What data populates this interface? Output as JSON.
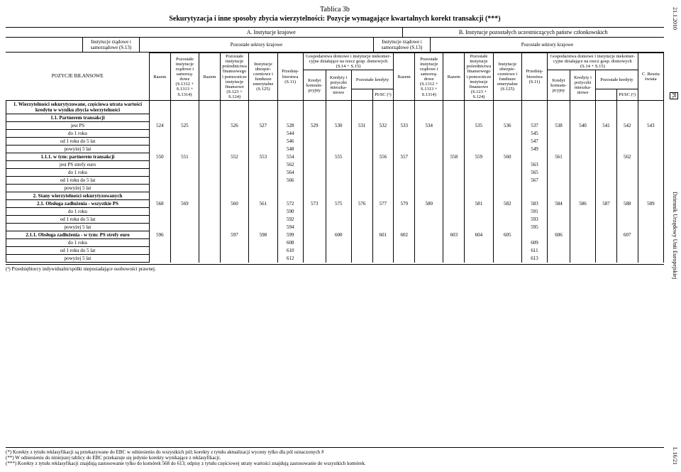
{
  "margin": {
    "date": "21.1.2010",
    "pl": "PL",
    "journal": "Dziennik Urzędowy Unii Europejskiej",
    "pgnum": "L 16/21"
  },
  "title": {
    "line1": "Tablica 3b",
    "line2": "Sekurytyzacja i inne sposoby zbycia wierzytelności: Pozycje wymagające kwartalnych korekt transakcji (***)"
  },
  "sections": {
    "a": "A. Instytucje krajowe",
    "b": "B. Instytucje pozostałych uczestniczących państw członkowskich"
  },
  "inst_row": {
    "a1": "Instytucje rządowe i samorządowe (S.13)",
    "a2": "Pozostałe sektory krajowe",
    "b1": "Instytucje rządowe i samorządowe (S.13)",
    "b2": "Pozostałe sektory krajowe"
  },
  "headers": {
    "pozycje": "POZYCJE BILANSOWE",
    "razem": "Razem",
    "poz_inst": "Pozostałe instytucje rządowe i samorzą­dowe (S.1312 + S.1313 + S.1314)",
    "posred": "Pozostałe instytucje pośred­nictwa finanso­wego i pomocn­icze instytucje finansowe (S.123 + S.124)",
    "ubezp": "Instytucje ubezpie­czeniowe i fundusze emery­talne (S.125)",
    "przed": "Przedsię­biorstwa (S.11)",
    "gosp_head": "Gospodarstwa domowe i instytucje niekomer­cyjne działające na rzecz gosp. domowych (S.14 + S.15)",
    "kredyt_kon": "Kredyt konsum­pcyjny",
    "kredyty_miesz": "Kredyty i pożyczki mieszka­niowe",
    "poz_kredyty": "Pozostałe kredyty",
    "pisc": "PI/SC (¹)",
    "reszta": "C. Reszta świata"
  },
  "rows": [
    {
      "label": "1.    Wierzytelności sekurytyzowane, częściowa utrata wartości kredytu w wyniku zbycia wierzytelności",
      "bold": true,
      "cells": [
        "",
        "",
        "",
        "",
        "",
        "",
        "",
        "",
        "",
        "",
        "",
        "",
        "",
        "",
        "",
        "",
        "",
        "",
        "",
        "",
        "",
        "",
        "",
        "",
        ""
      ]
    },
    {
      "label": "1.1.  Partnerem transakcji",
      "bold": true,
      "cells": [
        "",
        "",
        "",
        "",
        "",
        "",
        "",
        "",
        "",
        "",
        "",
        "",
        "",
        "",
        "",
        "",
        "",
        "",
        "",
        "",
        "",
        "",
        "",
        "",
        ""
      ]
    },
    {
      "label": "        jest PS",
      "cells": [
        "524",
        "525",
        "",
        "526",
        "527",
        "528",
        "529",
        "530",
        "531",
        "532",
        "533",
        "534",
        "",
        "535",
        "536",
        "537",
        "538",
        "540",
        "541",
        "542",
        "543"
      ]
    },
    {
      "label": "        do 1 roku",
      "cells": [
        "",
        "",
        "",
        "",
        "",
        "544",
        "",
        "",
        "",
        "",
        "",
        "",
        "",
        "",
        "",
        "545",
        "",
        "",
        "",
        "",
        ""
      ]
    },
    {
      "label": "        od 1 roku do 5 lat",
      "cells": [
        "",
        "",
        "",
        "",
        "",
        "546",
        "",
        "",
        "",
        "",
        "",
        "",
        "",
        "",
        "",
        "547",
        "",
        "",
        "",
        "",
        ""
      ]
    },
    {
      "label": "        powyżej 5 lat",
      "cells": [
        "",
        "",
        "",
        "",
        "",
        "548",
        "",
        "",
        "",
        "",
        "",
        "",
        "",
        "",
        "",
        "549",
        "",
        "",
        "",
        "",
        ""
      ]
    },
    {
      "label": "1.1.1. w tym: partnerem transakcji",
      "bold": true,
      "cells": [
        "550",
        "551",
        "",
        "552",
        "553",
        "554",
        "",
        "555",
        "",
        "556",
        "557",
        "",
        "558",
        "559",
        "560",
        "",
        "561",
        "",
        "",
        "562"
      ]
    },
    {
      "label": "        jest PS strefy euro",
      "cells": [
        "",
        "",
        "",
        "",
        "",
        "562",
        "",
        "",
        "",
        "",
        "",
        "",
        "",
        "",
        "",
        "563",
        "",
        "",
        "",
        "",
        ""
      ]
    },
    {
      "label": "        do 1 roku",
      "cells": [
        "",
        "",
        "",
        "",
        "",
        "564",
        "",
        "",
        "",
        "",
        "",
        "",
        "",
        "",
        "",
        "565",
        "",
        "",
        "",
        "",
        ""
      ]
    },
    {
      "label": "        od 1 roku do 5 lat",
      "cells": [
        "",
        "",
        "",
        "",
        "",
        "566",
        "",
        "",
        "",
        "",
        "",
        "",
        "",
        "",
        "",
        "567",
        "",
        "",
        "",
        "",
        ""
      ]
    },
    {
      "label": "        powyżej 5 lat",
      "cells": [
        "",
        "",
        "",
        "",
        "",
        "",
        "",
        "",
        "",
        "",
        "",
        "",
        "",
        "",
        "",
        "",
        "",
        "",
        "",
        "",
        ""
      ]
    },
    {
      "label": "2.    Stany wierzytelności sekurytyzowanych",
      "bold": true,
      "cells": [
        "",
        "",
        "",
        "",
        "",
        "",
        "",
        "",
        "",
        "",
        "",
        "",
        "",
        "",
        "",
        "",
        "",
        "",
        "",
        "",
        ""
      ]
    },
    {
      "label": "2.1.  Obsługa zadłużenia - wszystkie PS",
      "bold": true,
      "cells": [
        "568",
        "569",
        "",
        "560",
        "561",
        "572",
        "573",
        "575",
        "576",
        "577",
        "579",
        "580",
        "",
        "581",
        "582",
        "583",
        "584",
        "586",
        "587",
        "588",
        "589"
      ]
    },
    {
      "label": "        do 1 roku",
      "cells": [
        "",
        "",
        "",
        "",
        "",
        "590",
        "",
        "",
        "",
        "",
        "",
        "",
        "",
        "",
        "",
        "591",
        "",
        "",
        "",
        "",
        ""
      ]
    },
    {
      "label": "        od 1 roku do 5 lat",
      "cells": [
        "",
        "",
        "",
        "",
        "",
        "592",
        "",
        "",
        "",
        "",
        "",
        "",
        "",
        "",
        "",
        "593",
        "",
        "",
        "",
        "",
        ""
      ]
    },
    {
      "label": "        powyżej 5 lat",
      "cells": [
        "",
        "",
        "",
        "",
        "",
        "594",
        "",
        "",
        "",
        "",
        "",
        "",
        "",
        "",
        "",
        "595",
        "",
        "",
        "",
        "",
        ""
      ]
    },
    {
      "label": "2.1.1. Obsługa zadłużenia - w tym: PS strefy euro",
      "bold": true,
      "cells": [
        "596",
        "",
        "",
        "597",
        "598",
        "599",
        "",
        "600",
        "",
        "601",
        "602",
        "",
        "603",
        "604",
        "605",
        "",
        "606",
        "",
        "",
        "607"
      ]
    },
    {
      "label": "        do 1 roku",
      "cells": [
        "",
        "",
        "",
        "",
        "",
        "608",
        "",
        "",
        "",
        "",
        "",
        "",
        "",
        "",
        "",
        "609",
        "",
        "",
        "",
        "",
        ""
      ]
    },
    {
      "label": "        od 1 roku do 5 lat",
      "cells": [
        "",
        "",
        "",
        "",
        "",
        "610",
        "",
        "",
        "",
        "",
        "",
        "",
        "",
        "",
        "",
        "611",
        "",
        "",
        "",
        "",
        ""
      ]
    },
    {
      "label": "        powyżej 5 lat",
      "cells": [
        "",
        "",
        "",
        "",
        "",
        "612",
        "",
        "",
        "",
        "",
        "",
        "",
        "",
        "",
        "",
        "613",
        "",
        "",
        "",
        "",
        ""
      ]
    }
  ],
  "footnote1": "(¹) Przedsiębiorcy indywidualni/spółki nieposiadające osobowości prawnej.",
  "footnotes": {
    "f1": "(*)   Korekty z tytułu reklasyfikacji są przekazywane do EBC w odniesieniu do wszystkich pól; korekty z tytułu aktualizacji wyceny tylko dla pól oznaczonych #",
    "f2": "(**)  W odniesieniu do niniejszej tablicy do EBC przekazuje się jedynie korekty wynikające z reklasyfikacji.",
    "f3": "(***) Korekty z tytułu reklasyfikacji znajdują zastosowanie tylko do komórek 568 do 613; odpisy z tytułu częściowej utraty wartości znajdują zastosowanie do wszystkich komórek."
  }
}
